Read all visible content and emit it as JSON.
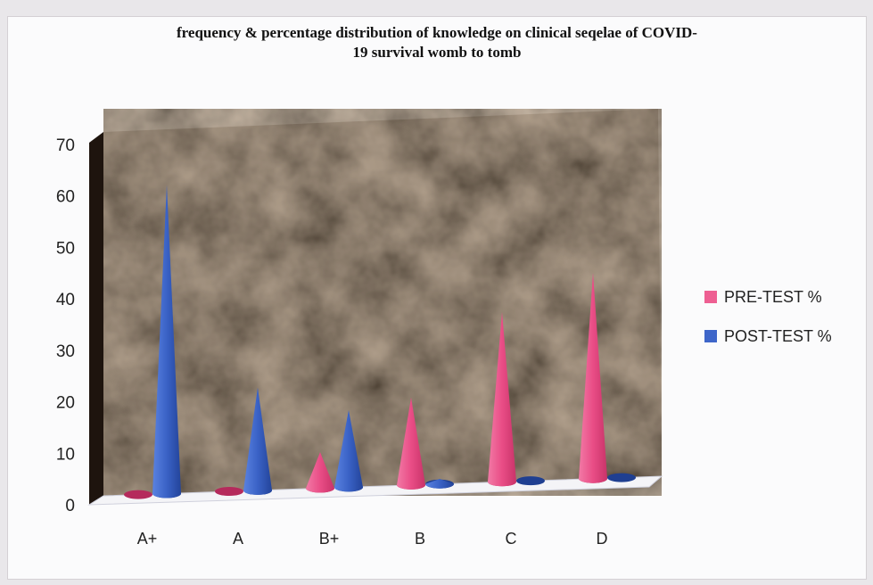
{
  "chart_data": {
    "type": "bar",
    "title": "frequency & percentage distribution of knowledge on clinical seqelae of COVID-19 survival womb to tomb",
    "title_lines": [
      "frequency & percentage distribution of knowledge on clinical seqelae of COVID-",
      "19 survival womb to tomb"
    ],
    "categories": [
      "A+",
      "A",
      "B+",
      "B",
      "C",
      "D"
    ],
    "series": [
      {
        "name": "PRE-TEST %",
        "color": "#ee5f92",
        "values": [
          0,
          0,
          7,
          17,
          33,
          40
        ]
      },
      {
        "name": "POST-TEST %",
        "color": "#3e66c9",
        "values": [
          60,
          20,
          15,
          1,
          0,
          0
        ]
      }
    ],
    "ylim": [
      0,
      70
    ],
    "yticks": [
      0,
      10,
      20,
      30,
      40,
      50,
      60,
      70
    ],
    "xlabel": "",
    "ylabel": "",
    "grid": false,
    "legend": "right",
    "mark_shape": "cone"
  }
}
